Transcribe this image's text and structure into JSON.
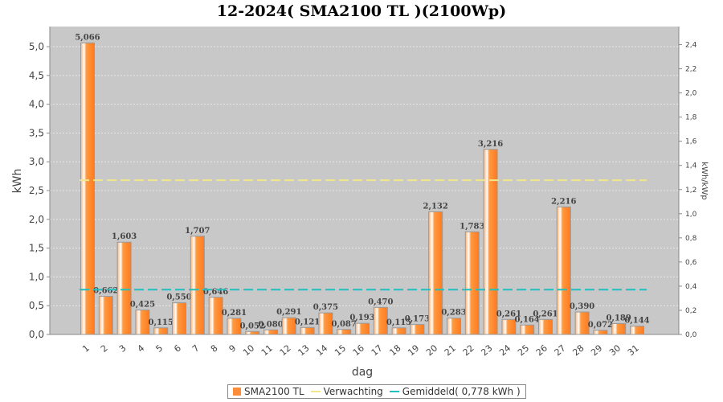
{
  "chart_data": {
    "type": "bar",
    "title": "12-2024( SMA2100 TL )(2100Wp)",
    "xlabel": "dag",
    "ylabel": "kWh",
    "y2label": "kWh/kWp",
    "ylim": [
      0,
      5.35
    ],
    "y2lim": [
      0,
      2.55
    ],
    "yticks": [
      "0,0",
      "0,5",
      "1,0",
      "1,5",
      "2,0",
      "2,5",
      "3,0",
      "3,5",
      "4,0",
      "4,5",
      "5,0"
    ],
    "y2ticks": [
      "0,0",
      "0,2",
      "0,4",
      "0,6",
      "0,8",
      "1,0",
      "1,2",
      "1,4",
      "1,6",
      "1,8",
      "2,0",
      "2,2",
      "2,4"
    ],
    "categories": [
      "1",
      "2",
      "3",
      "4",
      "5",
      "6",
      "7",
      "8",
      "9",
      "10",
      "11",
      "12",
      "13",
      "14",
      "15",
      "16",
      "17",
      "18",
      "19",
      "20",
      "21",
      "22",
      "23",
      "24",
      "25",
      "26",
      "27",
      "28",
      "29",
      "30",
      "31"
    ],
    "series": [
      {
        "name": "SMA2100 TL",
        "values": [
          5.066,
          0.662,
          1.603,
          0.425,
          0.115,
          0.55,
          1.707,
          0.646,
          0.281,
          0.052,
          0.08,
          0.291,
          0.121,
          0.375,
          0.087,
          0.193,
          0.47,
          0.115,
          0.173,
          2.132,
          0.283,
          1.783,
          3.216,
          0.261,
          0.164,
          0.261,
          2.216,
          0.39,
          0.072,
          0.189,
          0.144
        ],
        "labels": [
          "5,066",
          "0,662",
          "1,603",
          "0,425",
          "0,115",
          "0,550",
          "1,707",
          "0,646",
          "0,281",
          "0,052",
          "0,080",
          "0,291",
          "0,121",
          "0,375",
          "0,087",
          "0,193",
          "0,470",
          "0,115",
          "0,173",
          "2,132",
          "0,283",
          "1,783",
          "3,216",
          "0,261",
          "0,164",
          "0,261",
          "2,216",
          "0,390",
          "0,072",
          "0,189",
          "0,144"
        ]
      }
    ],
    "lines": [
      {
        "name": "Verwachting",
        "value": 2.68,
        "color": "#f0e68c"
      },
      {
        "name": "Gemiddeld( 0,778 kWh )",
        "value": 0.778,
        "color": "#20c0c0"
      }
    ],
    "legend": "bottom",
    "grid": true,
    "colors": {
      "bar": "#ff8c3a",
      "plot_bg": "#c8c8c8"
    }
  }
}
